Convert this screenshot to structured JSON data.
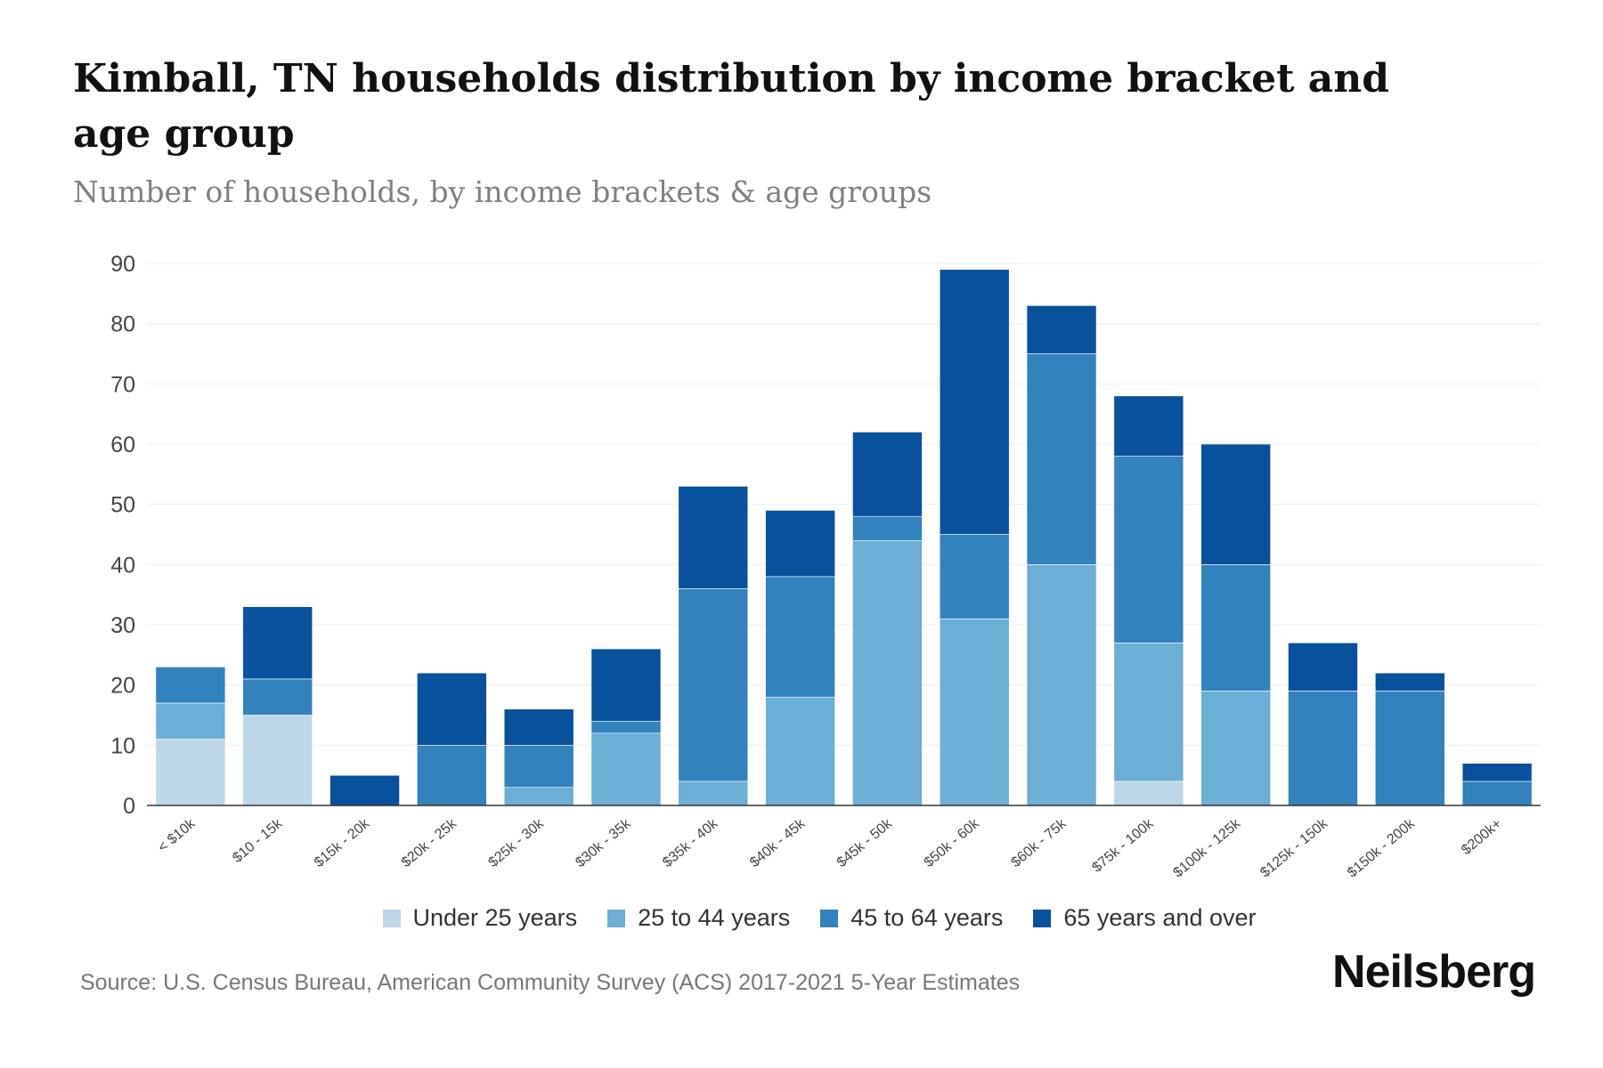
{
  "title": "Kimball, TN households distribution by income bracket and age group",
  "subtitle": "Number of households, by income brackets & age groups",
  "source": "Source: U.S. Census Bureau, American Community Survey (ACS) 2017-2021 5-Year Estimates",
  "brand": "Neilsberg",
  "chart_data": {
    "type": "bar",
    "stacked": true,
    "title": "Kimball, TN households distribution by income bracket and age group",
    "subtitle": "Number of households, by income brackets & age groups",
    "xlabel": "",
    "ylabel": "",
    "ylim": [
      0,
      90
    ],
    "yticks": [
      0,
      10,
      20,
      30,
      40,
      50,
      60,
      70,
      80,
      90
    ],
    "grid": true,
    "legend_position": "bottom",
    "categories": [
      "< $10k",
      "$10 - 15k",
      "$15k - 20k",
      "$20k - 25k",
      "$25k - 30k",
      "$30k - 35k",
      "$35k - 40k",
      "$40k - 45k",
      "$45k - 50k",
      "$50k - 60k",
      "$60k - 75k",
      "$75k - 100k",
      "$100k - 125k",
      "$125k - 150k",
      "$150k - 200k",
      "$200k+"
    ],
    "series": [
      {
        "name": "Under 25 years",
        "color": "#bcd8e8",
        "values": [
          11,
          15,
          0,
          0,
          0,
          0,
          0,
          0,
          0,
          0,
          0,
          4,
          0,
          0,
          0,
          0
        ]
      },
      {
        "name": "25 to 44 years",
        "color": "#6baed6",
        "values": [
          6,
          0,
          0,
          0,
          3,
          12,
          4,
          18,
          44,
          31,
          40,
          23,
          19,
          0,
          0,
          0
        ]
      },
      {
        "name": "45 to 64 years",
        "color": "#3182bd",
        "values": [
          6,
          6,
          0,
          10,
          7,
          2,
          32,
          20,
          4,
          14,
          35,
          31,
          21,
          19,
          19,
          4
        ]
      },
      {
        "name": "65 years and over",
        "color": "#08519c",
        "values": [
          0,
          12,
          5,
          12,
          6,
          12,
          17,
          11,
          14,
          44,
          8,
          10,
          20,
          8,
          3,
          3
        ]
      }
    ]
  }
}
